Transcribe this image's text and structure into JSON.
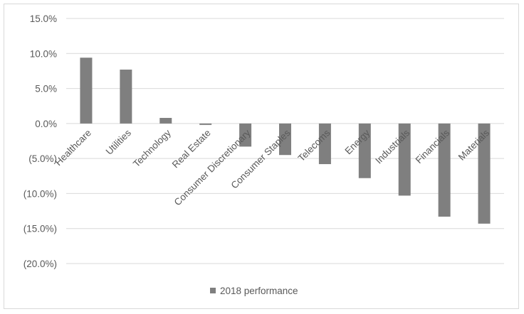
{
  "chart_data": {
    "type": "bar",
    "title": "",
    "xlabel": "",
    "ylabel": "",
    "ylim": [
      -0.2,
      0.15
    ],
    "yticks": [
      "15.0%",
      "10.0%",
      "5.0%",
      "0.0%",
      "(5.0%)",
      "(10.0%)",
      "(15.0%)",
      "(20.0%)"
    ],
    "ytick_values": [
      0.15,
      0.1,
      0.05,
      0.0,
      -0.05,
      -0.1,
      -0.15,
      -0.2
    ],
    "categories": [
      "Healthcare",
      "Utilities",
      "Technology",
      "Real Estate",
      "Consumer Discretionary",
      "Consumer Staples",
      "Telecoms",
      "Energy",
      "Industrials",
      "Financials",
      "Materials"
    ],
    "series": [
      {
        "name": "2018 performance",
        "values": [
          0.094,
          0.077,
          0.008,
          -0.002,
          -0.033,
          -0.045,
          -0.058,
          -0.078,
          -0.103,
          -0.133,
          -0.143
        ]
      }
    ],
    "grid": true,
    "legend": "bottom",
    "bar_color": "#7f7f7f",
    "grid_color": "#d9d9d9",
    "text_color": "#595959"
  }
}
